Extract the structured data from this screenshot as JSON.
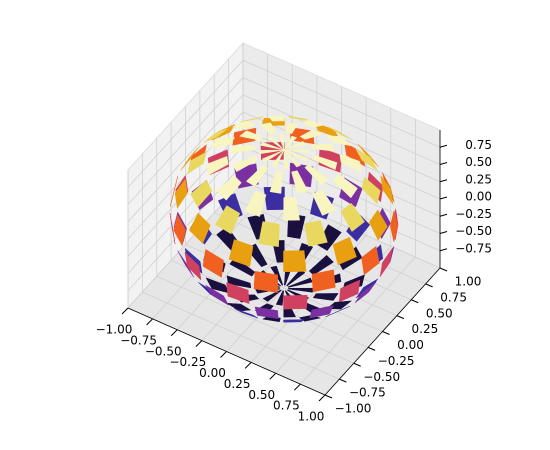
{
  "chart_data": {
    "type": "surface3d",
    "xlim": [
      -1,
      1
    ],
    "ylim": [
      -1,
      1
    ],
    "zlim": [
      -1,
      1
    ],
    "xticks": [
      {
        "value": -1,
        "label": "−1.00"
      },
      {
        "value": -0.75,
        "label": "−0.75"
      },
      {
        "value": -0.5,
        "label": "−0.50"
      },
      {
        "value": -0.25,
        "label": "−0.25"
      },
      {
        "value": 0,
        "label": "0.00"
      },
      {
        "value": 0.25,
        "label": "0.25"
      },
      {
        "value": 0.5,
        "label": "0.50"
      },
      {
        "value": 0.75,
        "label": "0.75"
      },
      {
        "value": 1,
        "label": "1.00"
      }
    ],
    "yticks": [
      {
        "value": -1,
        "label": "−1.00"
      },
      {
        "value": -0.75,
        "label": "−0.75"
      },
      {
        "value": -0.5,
        "label": "−0.50"
      },
      {
        "value": -0.25,
        "label": "−0.25"
      },
      {
        "value": 0,
        "label": "0.00"
      },
      {
        "value": 0.25,
        "label": "0.25"
      },
      {
        "value": 0.5,
        "label": "0.50"
      },
      {
        "value": 0.75,
        "label": "0.75"
      },
      {
        "value": 1,
        "label": "1.00"
      }
    ],
    "zticks": [
      {
        "value": -0.75,
        "label": "−0.75"
      },
      {
        "value": -0.5,
        "label": "−0.50"
      },
      {
        "value": -0.25,
        "label": "−0.25"
      },
      {
        "value": 0,
        "label": "0.00"
      },
      {
        "value": 0.25,
        "label": "0.25"
      },
      {
        "value": 0.5,
        "label": "0.50"
      },
      {
        "value": 0.75,
        "label": "0.75"
      }
    ],
    "colormap": [
      "#1a1040",
      "#3a2ea0",
      "#7a30a0",
      "#d04060",
      "#f06020",
      "#e8a010",
      "#e8d860",
      "#f8f5c0"
    ],
    "grid": true
  }
}
